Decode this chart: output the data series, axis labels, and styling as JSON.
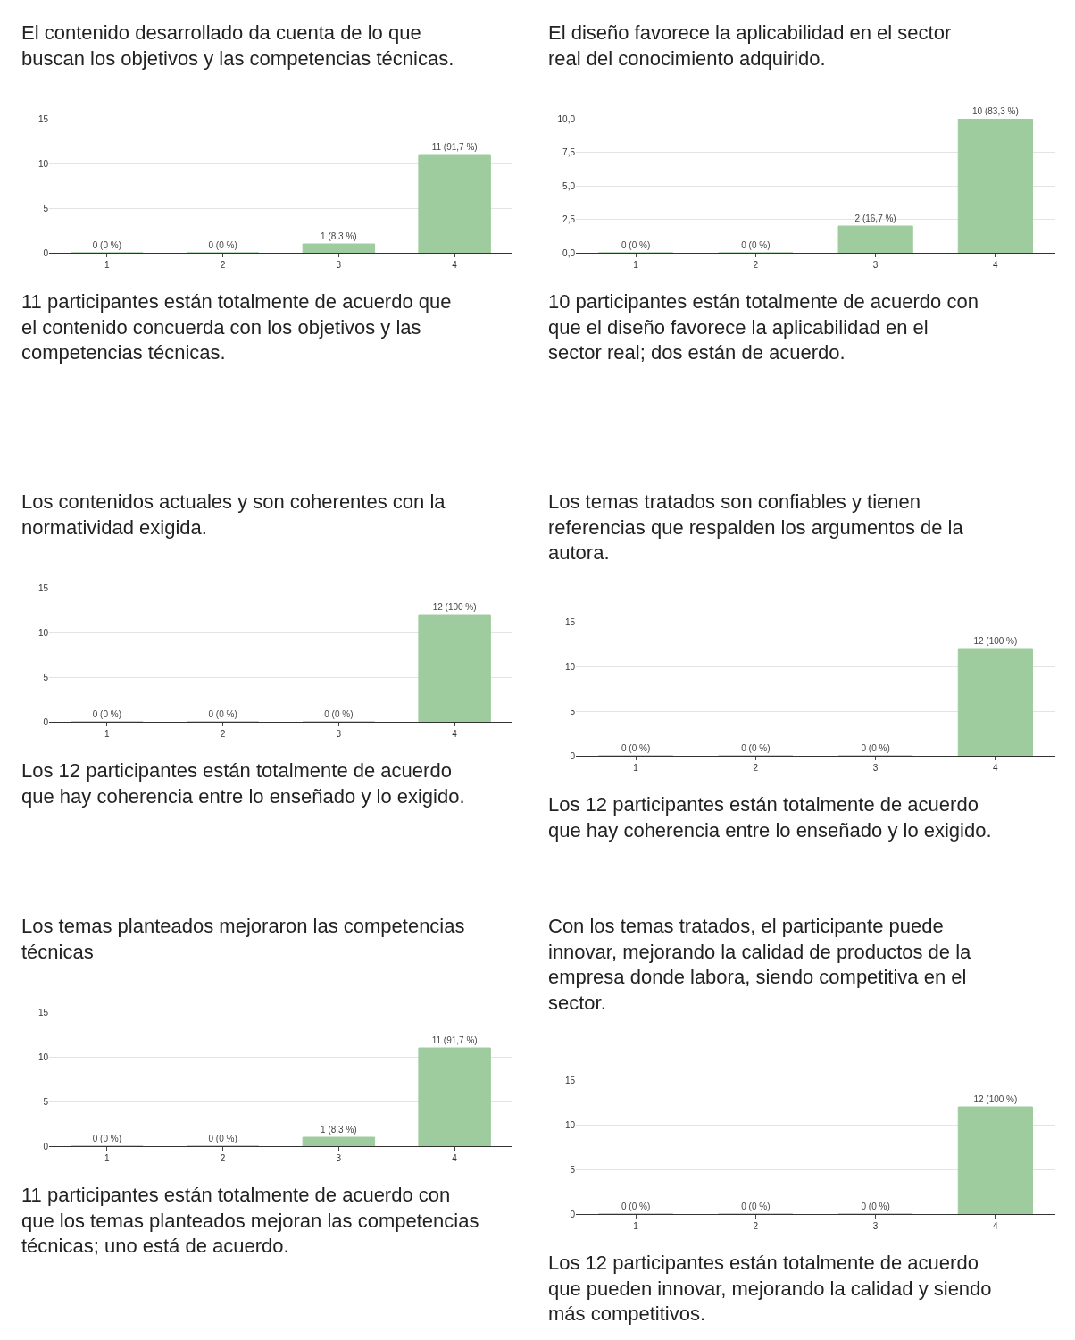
{
  "chart_data": [
    {
      "type": "bar",
      "title": "El contenido desarrollado da cuenta de lo que buscan los objetivos y las competencias técnicas.",
      "categories": [
        "1",
        "2",
        "3",
        "4"
      ],
      "values": [
        0,
        0,
        1,
        11
      ],
      "value_labels": [
        "0 (0 %)",
        "0 (0 %)",
        "1 (8,3 %)",
        "11 (91,7 %)"
      ],
      "color": "#9fcc9f",
      "ylim": [
        0,
        15
      ],
      "yticks": [
        0,
        5,
        10,
        15
      ],
      "grid": "y",
      "annotations": [
        "11 participantes están totalmente de acuerdo que el contenido concuerda con los objetivos y las competencias técnicas."
      ]
    },
    {
      "type": "bar",
      "title": "El diseño favorece la aplicabilidad en el sector real del conocimiento adquirido.",
      "categories": [
        "1",
        "2",
        "3",
        "4"
      ],
      "values": [
        0,
        0,
        2,
        10
      ],
      "value_labels": [
        "0 (0 %)",
        "0 (0 %)",
        "2 (16,7 %)",
        "10 (83,3 %)"
      ],
      "color": "#9fcc9f",
      "ylim": [
        0,
        10
      ],
      "yticks": [
        {
          "value": 0,
          "label": "0,0"
        },
        {
          "value": 2.5,
          "label": "2,5"
        },
        {
          "value": 5,
          "label": "5,0"
        },
        {
          "value": 7.5,
          "label": "7,5"
        },
        {
          "value": 10,
          "label": "10,0"
        }
      ],
      "grid": "y",
      "annotations": [
        "10 participantes están totalmente de acuerdo con que el diseño favorece la aplicabilidad en el sector real; dos están de acuerdo."
      ]
    },
    {
      "type": "bar",
      "title": "Los contenidos actuales y son coherentes con la normatividad exigida.",
      "categories": [
        "1",
        "2",
        "3",
        "4"
      ],
      "values": [
        0,
        0,
        0,
        12
      ],
      "value_labels": [
        "0 (0 %)",
        "0 (0 %)",
        "0 (0 %)",
        "12 (100 %)"
      ],
      "color": "#9fcc9f",
      "ylim": [
        0,
        15
      ],
      "yticks": [
        0,
        5,
        10,
        15
      ],
      "grid": "y",
      "annotations": [
        "Los 12 participantes están totalmente de acuerdo que hay coherencia entre lo enseñado y lo exigido."
      ]
    },
    {
      "type": "bar",
      "title": "Los temas tratados son confiables y tienen referencias que respalden los argumentos de la autora.",
      "categories": [
        "1",
        "2",
        "3",
        "4"
      ],
      "values": [
        0,
        0,
        0,
        12
      ],
      "value_labels": [
        "0 (0 %)",
        "0 (0 %)",
        "0 (0 %)",
        "12 (100 %)"
      ],
      "color": "#9fcc9f",
      "ylim": [
        0,
        15
      ],
      "yticks": [
        0,
        5,
        10,
        15
      ],
      "grid": "y",
      "annotations": [
        "Los 12 participantes están totalmente de acuerdo que hay coherencia entre lo enseñado y lo exigido."
      ]
    },
    {
      "type": "bar",
      "title": "Los temas planteados mejoraron las competencias técnicas",
      "categories": [
        "1",
        "2",
        "3",
        "4"
      ],
      "values": [
        0,
        0,
        1,
        11
      ],
      "value_labels": [
        "0 (0 %)",
        "0 (0 %)",
        "1 (8,3 %)",
        "11 (91,7 %)"
      ],
      "color": "#9fcc9f",
      "ylim": [
        0,
        15
      ],
      "yticks": [
        0,
        5,
        10,
        15
      ],
      "grid": "y",
      "annotations": [
        "11 participantes están totalmente de acuerdo con que los temas planteados mejoran las competencias técnicas; uno está de acuerdo."
      ]
    },
    {
      "type": "bar",
      "title": "Con los temas tratados, el participante puede innovar, mejorando la calidad de productos de la empresa donde labora, siendo competitiva en el sector.",
      "categories": [
        "1",
        "2",
        "3",
        "4"
      ],
      "values": [
        0,
        0,
        0,
        12
      ],
      "value_labels": [
        "0 (0 %)",
        "0 (0 %)",
        "0 (0 %)",
        "12 (100 %)"
      ],
      "color": "#9fcc9f",
      "ylim": [
        0,
        15
      ],
      "yticks": [
        0,
        5,
        10,
        15
      ],
      "grid": "y",
      "annotations": [
        "Los 12 participantes están totalmente de acuerdo que pueden innovar, mejorando la calidad y siendo más competitivos."
      ]
    }
  ]
}
